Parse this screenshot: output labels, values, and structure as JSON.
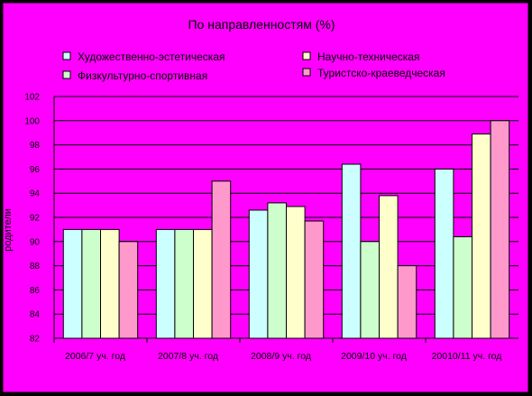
{
  "colors": {
    "background": "#ff00ff",
    "plot_area": "#ff00ff",
    "frame": "#000000"
  },
  "chart_data": {
    "type": "bar",
    "title": "По направленностям (%)",
    "ylabel": "родители",
    "ylim": [
      82,
      102
    ],
    "yticks": [
      82,
      84,
      86,
      88,
      90,
      92,
      94,
      96,
      98,
      100,
      102
    ],
    "grid": true,
    "legend_position": "top",
    "categories": [
      "2006/7 уч. год",
      "2007/8 уч. год",
      "2008/9 уч. год",
      "2009/10 уч. год",
      "20010/11 уч. год"
    ],
    "series": [
      {
        "name": "Художественно-эстетическая",
        "color": "#ccffff",
        "values": [
          91,
          91,
          92.6,
          96.4,
          96
        ]
      },
      {
        "name": "Физкультурно-спортивная",
        "color": "#ccffcc",
        "values": [
          91,
          91,
          93.2,
          90,
          90.4
        ]
      },
      {
        "name": "Научно-техническая",
        "color": "#ffffcc",
        "values": [
          91,
          91,
          92.9,
          93.8,
          98.9
        ]
      },
      {
        "name": "Туристско-краеведческая",
        "color": "#ff99cc",
        "values": [
          90,
          95,
          91.7,
          88,
          100
        ]
      }
    ]
  }
}
